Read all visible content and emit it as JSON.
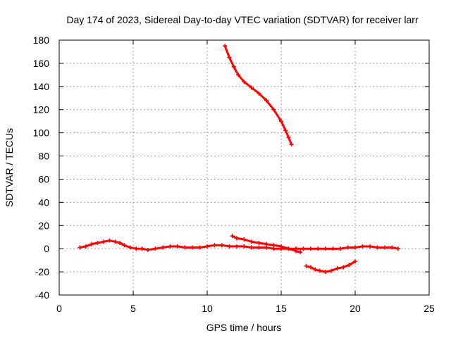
{
  "chart_data": {
    "type": "scatter",
    "title": "Day 174 of 2023, Sidereal Day-to-day VTEC variation (SDTVAR) for receiver larr",
    "xlabel": "GPS time / hours",
    "ylabel": "SDTVAR / TECUs",
    "xlim": [
      0,
      25
    ],
    "ylim": [
      -40,
      180
    ],
    "xticks": [
      0,
      5,
      10,
      15,
      20,
      25
    ],
    "yticks": [
      -40,
      -20,
      0,
      20,
      40,
      60,
      80,
      100,
      120,
      140,
      160,
      180
    ],
    "xtick_labels": [
      "0",
      "5",
      "10",
      "15",
      "20",
      "25"
    ],
    "ytick_labels": [
      "-40",
      "-20",
      "0",
      "20",
      "40",
      "60",
      "80",
      "100",
      "120",
      "140",
      "160",
      "180"
    ],
    "grid": true,
    "marker": "plus",
    "color": "#ff0000",
    "series": [
      {
        "name": "main-track",
        "x": [
          1.4,
          1.8,
          2.2,
          2.6,
          3.0,
          3.4,
          3.8,
          4.1,
          4.4,
          4.8,
          5.2,
          5.6,
          6.0,
          6.5,
          7.0,
          7.5,
          8.0,
          8.5,
          9.0,
          9.5,
          10.0,
          10.5,
          11.0,
          11.5,
          12.0,
          12.5,
          13.0,
          13.5,
          14.0,
          14.5,
          15.0,
          15.5,
          16.0,
          16.5,
          17.0,
          17.5,
          18.0,
          18.5,
          19.0,
          19.5,
          20.0,
          20.5,
          21.0,
          21.5,
          22.0,
          22.5,
          22.9
        ],
        "y": [
          1,
          2,
          4,
          5,
          6,
          7,
          6,
          5,
          3,
          1,
          0,
          0,
          -1,
          0,
          1,
          2,
          2,
          1,
          1,
          1,
          2,
          3,
          3,
          2,
          2,
          2,
          1,
          1,
          1,
          0,
          0,
          0,
          0,
          0,
          0,
          0,
          0,
          0,
          0,
          1,
          1,
          2,
          2,
          1,
          1,
          1,
          0
        ]
      },
      {
        "name": "high-track",
        "x": [
          11.2,
          11.5,
          11.8,
          12.1,
          12.5,
          13.0,
          13.5,
          14.0,
          14.5,
          15.0,
          15.3,
          15.5,
          15.7
        ],
        "y": [
          175,
          165,
          157,
          150,
          144,
          139,
          134,
          128,
          120,
          110,
          102,
          96,
          90
        ]
      },
      {
        "name": "mid-track",
        "x": [
          11.7,
          12.0,
          12.5,
          13.0,
          13.5,
          14.0,
          14.5,
          15.0,
          15.5,
          16.0,
          16.3
        ],
        "y": [
          11,
          9,
          8,
          6,
          5,
          4,
          3,
          2,
          0,
          -2,
          -3
        ]
      },
      {
        "name": "low-track",
        "x": [
          16.7,
          17.0,
          17.3,
          17.6,
          18.0,
          18.4,
          18.8,
          19.2,
          19.6,
          20.0
        ],
        "y": [
          -15,
          -16,
          -18,
          -19,
          -20,
          -19,
          -17,
          -16,
          -14,
          -11
        ]
      }
    ]
  }
}
